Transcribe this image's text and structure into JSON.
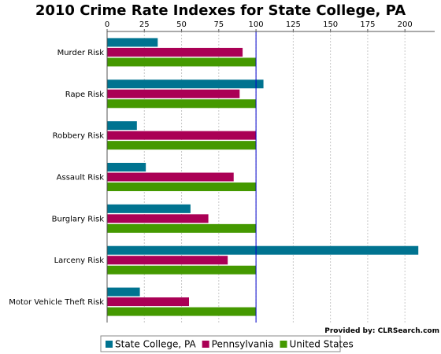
{
  "chart_data": {
    "type": "bar",
    "orientation": "horizontal",
    "title": "2010 Crime Rate Indexes for State College, PA",
    "categories": [
      "Murder Risk",
      "Rape Risk",
      "Robbery Risk",
      "Assault Risk",
      "Burglary Risk",
      "Larceny Risk",
      "Motor Vehicle Theft Risk"
    ],
    "series": [
      {
        "name": "State College, PA",
        "color": "#007390",
        "values": [
          34,
          105,
          20,
          26,
          56,
          209,
          22
        ]
      },
      {
        "name": "Pennsylvania",
        "color": "#aa0055",
        "values": [
          91,
          89,
          100,
          85,
          68,
          81,
          55
        ]
      },
      {
        "name": "United States",
        "color": "#449900",
        "values": [
          100,
          100,
          100,
          100,
          100,
          100,
          100
        ]
      }
    ],
    "x_ticks": [
      "0",
      "25",
      "50",
      "75",
      "100",
      "125",
      "150",
      "175",
      "200"
    ],
    "xlim": [
      0,
      220
    ],
    "reference_line": 100,
    "reference_color": "#0000cc",
    "grid": true,
    "legend_position": "bottom-center"
  },
  "credit": "Provided by: CLRSearch.com"
}
